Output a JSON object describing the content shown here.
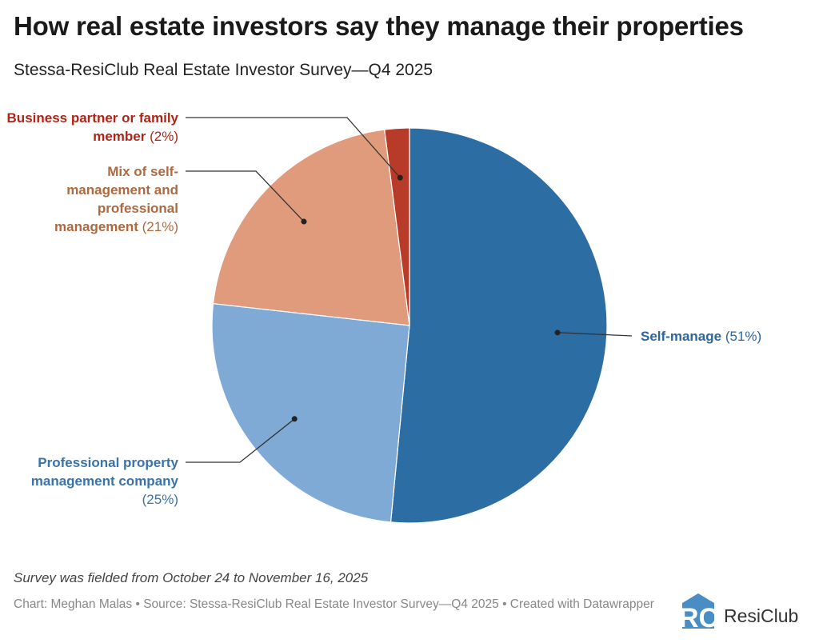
{
  "title": "How real estate investors say they manage their properties",
  "subtitle": "Stessa-ResiClub Real Estate Investor Survey—Q4 2025",
  "chart_data": {
    "type": "pie",
    "slices": [
      {
        "name": "Self-manage",
        "value": 51,
        "pct_label": "(51%)",
        "color": "#2c6da4",
        "label_color": "#2a66a0"
      },
      {
        "name": "Professional property management company",
        "value": 25,
        "pct_label": "(25%)",
        "color": "#7faad6",
        "label_color": "#3a73a8"
      },
      {
        "name": "Mix of self-management and professional management",
        "value": 21,
        "pct_label": "(21%)",
        "color": "#e09a7c",
        "label_color": "#b0683f"
      },
      {
        "name": "Business partner or family member",
        "value": 2,
        "pct_label": "(2%)",
        "color": "#b83a29",
        "label_color": "#b02418"
      }
    ]
  },
  "note": "Survey was fielded from October 24 to November 16, 2025",
  "source": "Chart: Meghan Malas • Source: Stessa-ResiClub Real Estate Investor Survey—Q4 2025 • Created with Datawrapper",
  "logo": {
    "text": "ResiClub",
    "mark": "RC"
  }
}
